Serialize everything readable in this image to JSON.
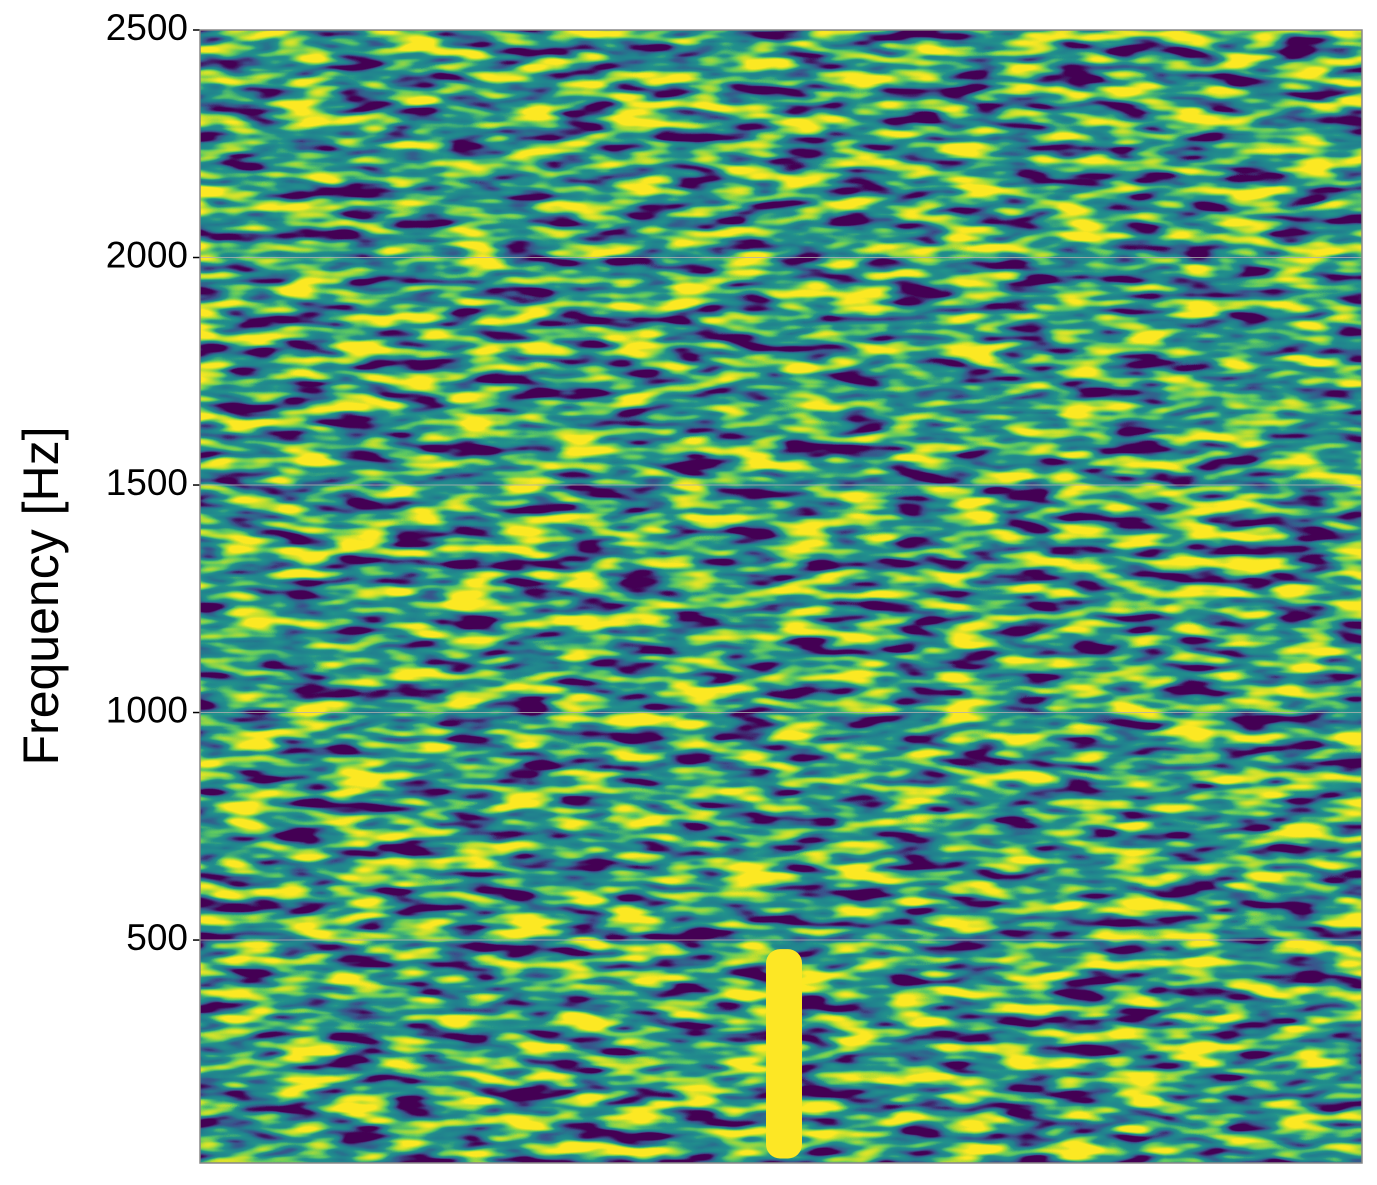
{
  "chart_data": {
    "type": "spectrogram",
    "ylabel": "Frequency [Hz]",
    "ylim": [
      10,
      2500
    ],
    "yticks": [
      500,
      1000,
      1500,
      2000,
      2500
    ],
    "grid": true,
    "colormap": "viridis",
    "signal": {
      "frequency": [
        20,
        480
      ],
      "color": "#fde725"
    }
  }
}
